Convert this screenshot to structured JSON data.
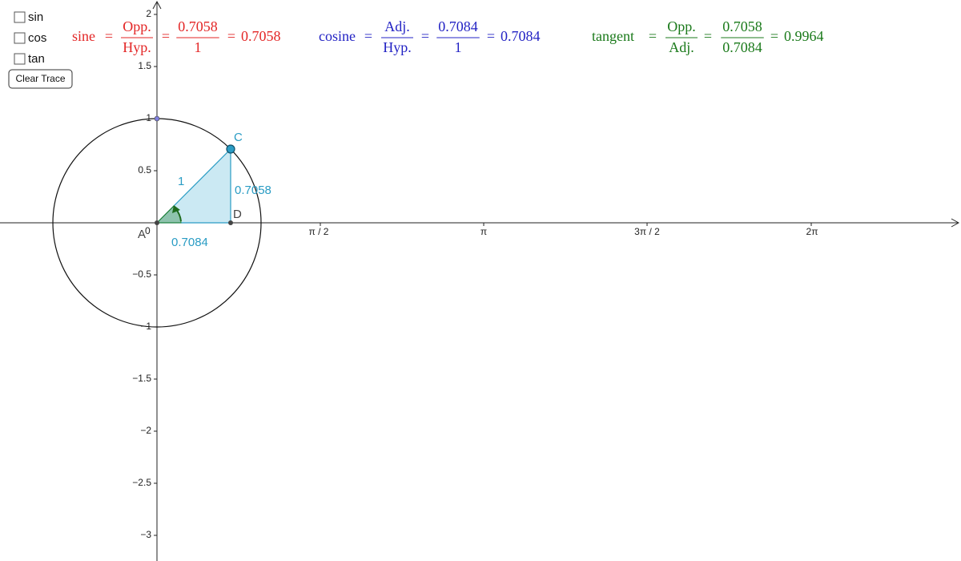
{
  "checkboxes": [
    "sin",
    "cos",
    "tan"
  ],
  "button": "Clear Trace",
  "formulas": [
    {
      "name": "sine",
      "eq": "=",
      "num1": "Opp.",
      "den1": "Hyp.",
      "num2": "0.7058",
      "den2": "1",
      "result": "0.7058"
    },
    {
      "name": "cosine",
      "eq": "=",
      "num1": "Adj.",
      "den1": "Hyp.",
      "num2": "0.7084",
      "den2": "1",
      "result": "0.7084"
    },
    {
      "name": "tangent",
      "eq": "=",
      "num1": "Opp.",
      "den1": "Adj.",
      "num2": "0.7058",
      "den2": "0.7084",
      "result": "0.9964"
    }
  ],
  "y_axis_labels": [
    "2",
    "1.5",
    "1",
    "0.5",
    "−0.5",
    "−1",
    "−1.5",
    "−2",
    "−2.5",
    "−3"
  ],
  "x_axis_labels": [
    "π / 2",
    "π",
    "3π / 2",
    "2π"
  ],
  "origin_label": "0",
  "points": {
    "A": "A",
    "C": "C",
    "D": "D"
  },
  "segment_labels": {
    "hypotenuse": "1",
    "opposite": "0.7058",
    "adjacent": "0.7084"
  }
}
